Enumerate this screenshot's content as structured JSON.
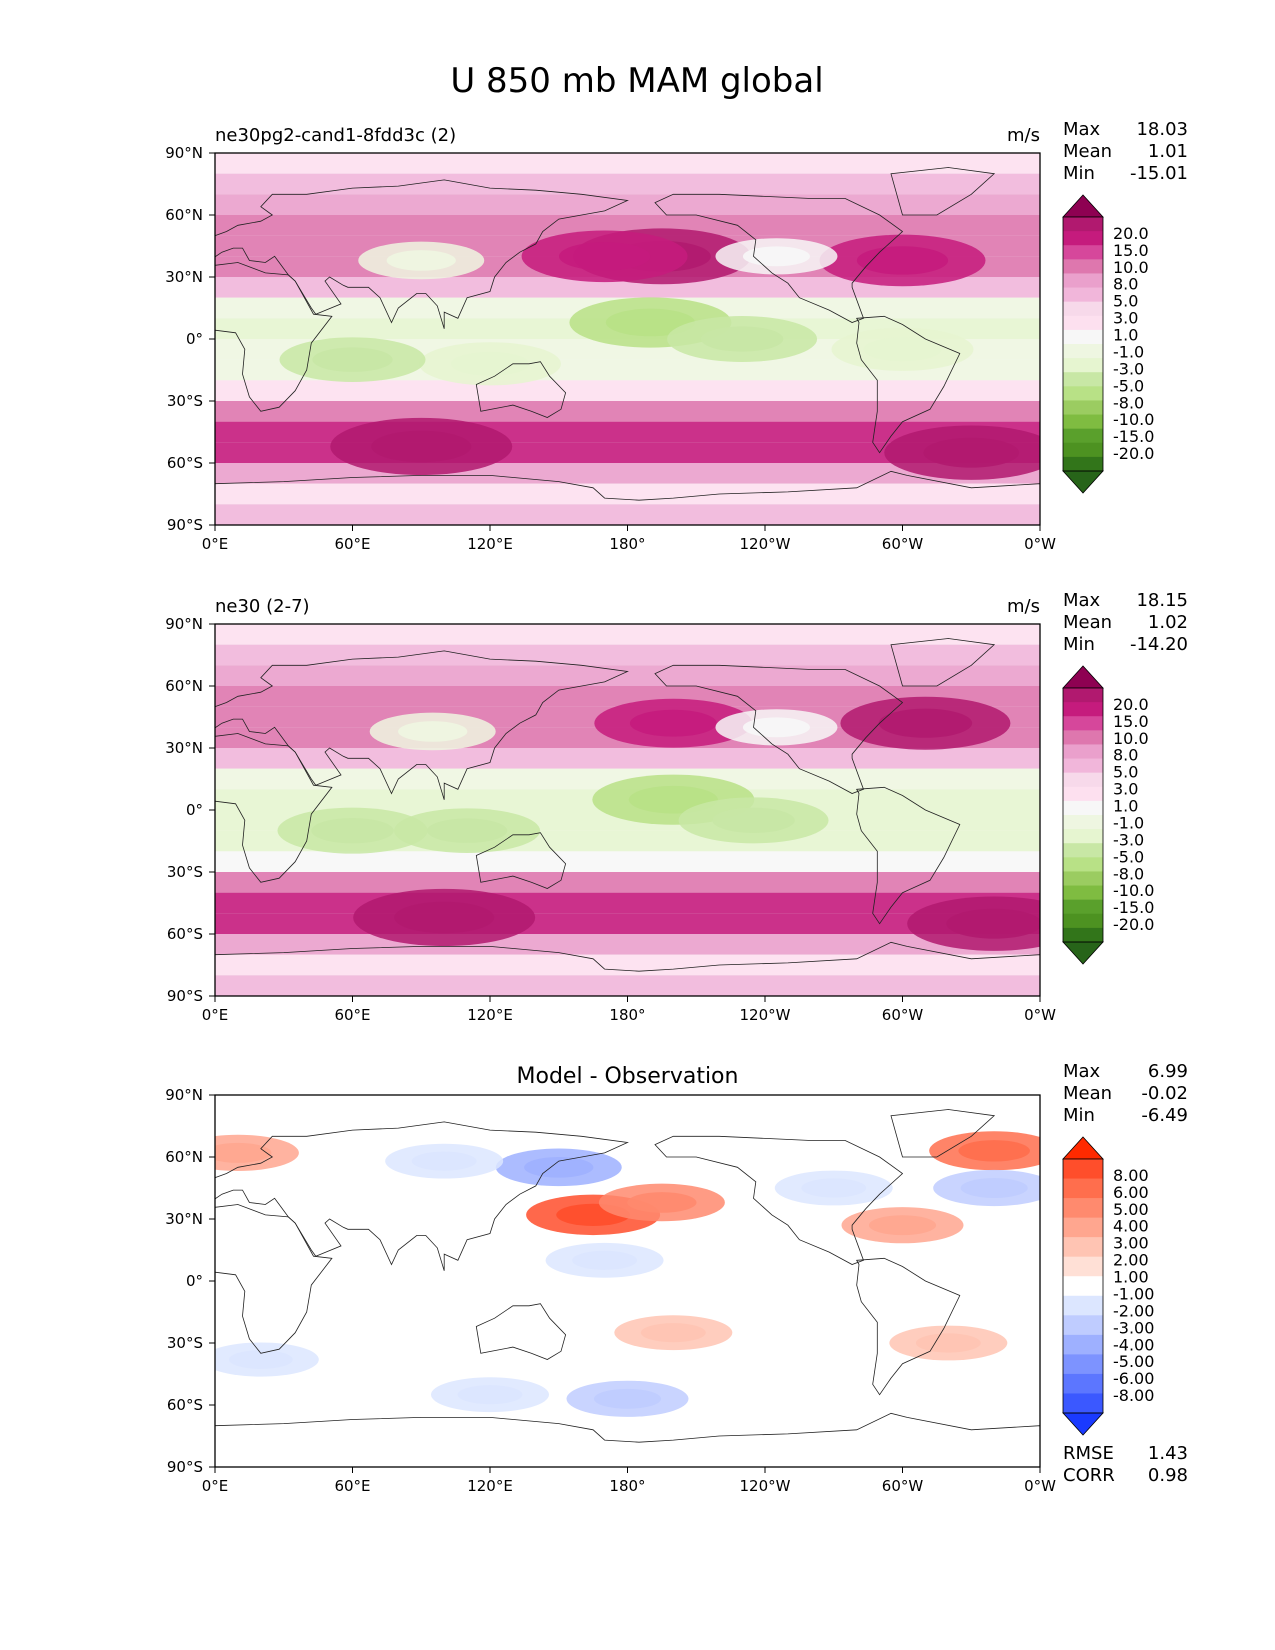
{
  "figure": {
    "title": "U 850 mb MAM global"
  },
  "chart_data": [
    {
      "type": "heatmap",
      "title": "ne30pg2-cand1-8fdd3c (2)",
      "units": "m/s",
      "stats": {
        "Max": "18.03",
        "Mean": "1.01",
        "Min": "-15.01"
      },
      "x_ticks": [
        "0°E",
        "60°E",
        "120°E",
        "180°",
        "120°W",
        "60°W",
        "0°W"
      ],
      "y_ticks": [
        "90°N",
        "60°N",
        "30°N",
        "0°",
        "30°S",
        "60°S",
        "90°S"
      ],
      "colorbar_levels": [
        "20.0",
        "15.0",
        "10.0",
        "8.0",
        "5.0",
        "3.0",
        "1.0",
        "-1.0",
        "-3.0",
        "-5.0",
        "-8.0",
        "-10.0",
        "-15.0",
        "-20.0"
      ],
      "colormap": [
        "#8e0152",
        "#b1196f",
        "#c51b7d",
        "#d6479b",
        "#de77ae",
        "#eaa0cc",
        "#f1b6da",
        "#f7d9ea",
        "#fde0ef",
        "#f7f7f7",
        "#eef6e1",
        "#e6f5d0",
        "#c8e7a5",
        "#b8e186",
        "#9bcc61",
        "#7fbc41",
        "#5aa02c",
        "#4d9221",
        "#32751a",
        "#276419"
      ],
      "zonal_profile": [
        {
          "lat": 90,
          "value": 0.2
        },
        {
          "lat": 80,
          "value": 1.5
        },
        {
          "lat": 70,
          "value": 3
        },
        {
          "lat": 60,
          "value": 5
        },
        {
          "lat": 50,
          "value": 6
        },
        {
          "lat": 40,
          "value": 9
        },
        {
          "lat": 30,
          "value": 6
        },
        {
          "lat": 20,
          "value": -1
        },
        {
          "lat": 10,
          "value": -7
        },
        {
          "lat": 0,
          "value": -4
        },
        {
          "lat": -10,
          "value": -6
        },
        {
          "lat": -20,
          "value": -3
        },
        {
          "lat": -30,
          "value": 2
        },
        {
          "lat": -40,
          "value": 10
        },
        {
          "lat": -50,
          "value": 16
        },
        {
          "lat": -60,
          "value": 11
        },
        {
          "lat": -70,
          "value": -2
        },
        {
          "lat": -80,
          "value": 2
        },
        {
          "lat": -90,
          "value": 0
        }
      ],
      "features": [
        {
          "lon": 195,
          "lat": 40,
          "value": 17
        },
        {
          "lon": 170,
          "lat": 40,
          "value": 14
        },
        {
          "lon": 300,
          "lat": 38,
          "value": 14
        },
        {
          "lon": 90,
          "lat": 38,
          "value": -4
        },
        {
          "lon": 245,
          "lat": 40,
          "value": -3
        },
        {
          "lon": 190,
          "lat": 8,
          "value": -13
        },
        {
          "lon": 230,
          "lat": 0,
          "value": -10
        },
        {
          "lon": 120,
          "lat": -12,
          "value": -8
        },
        {
          "lon": 300,
          "lat": -5,
          "value": -8
        },
        {
          "lon": 60,
          "lat": -10,
          "value": -9
        },
        {
          "lon": 90,
          "lat": -52,
          "value": 18
        },
        {
          "lon": 330,
          "lat": -55,
          "value": 16
        }
      ]
    },
    {
      "type": "heatmap",
      "title": "ne30 (2-7)",
      "units": "m/s",
      "stats": {
        "Max": "18.15",
        "Mean": "1.02",
        "Min": "-14.20"
      },
      "x_ticks": [
        "0°E",
        "60°E",
        "120°E",
        "180°",
        "120°W",
        "60°W",
        "0°W"
      ],
      "y_ticks": [
        "90°N",
        "60°N",
        "30°N",
        "0°",
        "30°S",
        "60°S",
        "90°S"
      ],
      "colorbar_levels": [
        "20.0",
        "15.0",
        "10.0",
        "8.0",
        "5.0",
        "3.0",
        "1.0",
        "-1.0",
        "-3.0",
        "-5.0",
        "-8.0",
        "-10.0",
        "-15.0",
        "-20.0"
      ],
      "colormap": [
        "#8e0152",
        "#b1196f",
        "#c51b7d",
        "#d6479b",
        "#de77ae",
        "#eaa0cc",
        "#f1b6da",
        "#f7d9ea",
        "#fde0ef",
        "#f7f7f7",
        "#eef6e1",
        "#e6f5d0",
        "#c8e7a5",
        "#b8e186",
        "#9bcc61",
        "#7fbc41",
        "#5aa02c",
        "#4d9221",
        "#32751a",
        "#276419"
      ],
      "zonal_profile": [
        {
          "lat": 90,
          "value": 0.2
        },
        {
          "lat": 80,
          "value": 1.5
        },
        {
          "lat": 70,
          "value": 3
        },
        {
          "lat": 60,
          "value": 5
        },
        {
          "lat": 50,
          "value": 7
        },
        {
          "lat": 40,
          "value": 7
        },
        {
          "lat": 30,
          "value": 4
        },
        {
          "lat": 20,
          "value": -2
        },
        {
          "lat": 10,
          "value": -8
        },
        {
          "lat": 0,
          "value": -5
        },
        {
          "lat": -10,
          "value": -7
        },
        {
          "lat": -20,
          "value": -4
        },
        {
          "lat": -30,
          "value": 1
        },
        {
          "lat": -40,
          "value": 9
        },
        {
          "lat": -50,
          "value": 16
        },
        {
          "lat": -60,
          "value": 11
        },
        {
          "lat": -70,
          "value": -2
        },
        {
          "lat": -80,
          "value": 2
        },
        {
          "lat": -90,
          "value": 0
        }
      ],
      "features": [
        {
          "lon": 200,
          "lat": 42,
          "value": 12
        },
        {
          "lon": 310,
          "lat": 42,
          "value": 15
        },
        {
          "lon": 95,
          "lat": 38,
          "value": -4
        },
        {
          "lon": 245,
          "lat": 40,
          "value": -3
        },
        {
          "lon": 200,
          "lat": 5,
          "value": -13
        },
        {
          "lon": 235,
          "lat": -5,
          "value": -10
        },
        {
          "lon": 110,
          "lat": -10,
          "value": -9
        },
        {
          "lon": 60,
          "lat": -10,
          "value": -10
        },
        {
          "lon": 100,
          "lat": -52,
          "value": 18
        },
        {
          "lon": 340,
          "lat": -55,
          "value": 16
        }
      ]
    },
    {
      "type": "heatmap",
      "title": "Model - Observation",
      "units": "",
      "stats": {
        "Max": "6.99",
        "Mean": "-0.02",
        "Min": "-6.49"
      },
      "extra_stats": {
        "RMSE": "1.43",
        "CORR": "0.98"
      },
      "x_ticks": [
        "0°E",
        "60°E",
        "120°E",
        "180°",
        "120°W",
        "60°W",
        "0°W"
      ],
      "y_ticks": [
        "90°N",
        "60°N",
        "30°N",
        "0°",
        "30°S",
        "60°S",
        "90°S"
      ],
      "colorbar_levels": [
        "8.00",
        "6.00",
        "5.00",
        "4.00",
        "3.00",
        "2.00",
        "1.00",
        "-1.00",
        "-2.00",
        "-3.00",
        "-4.00",
        "-5.00",
        "-6.00",
        "-8.00"
      ],
      "colormap": [
        "#ff2a00",
        "#ff4e2b",
        "#ff6e4d",
        "#ff8a6e",
        "#ffa68f",
        "#ffc4b3",
        "#ffe0d6",
        "#ffffff",
        "#dce6ff",
        "#bfccff",
        "#9eb0ff",
        "#7d93ff",
        "#5c76ff",
        "#3b58ff",
        "#1a3aff"
      ],
      "zonal_profile": [
        {
          "lat": 90,
          "value": 0
        },
        {
          "lat": -90,
          "value": 0
        }
      ],
      "features": [
        {
          "lon": 165,
          "lat": 32,
          "value": 6
        },
        {
          "lon": 195,
          "lat": 38,
          "value": 4
        },
        {
          "lon": 300,
          "lat": 27,
          "value": 3
        },
        {
          "lon": 340,
          "lat": 63,
          "value": 5
        },
        {
          "lon": 10,
          "lat": 62,
          "value": 3
        },
        {
          "lon": 150,
          "lat": 55,
          "value": -4
        },
        {
          "lon": 100,
          "lat": 58,
          "value": -2
        },
        {
          "lon": 340,
          "lat": 45,
          "value": -3
        },
        {
          "lon": 270,
          "lat": 45,
          "value": -2
        },
        {
          "lon": 170,
          "lat": 10,
          "value": -2
        },
        {
          "lon": 200,
          "lat": -25,
          "value": 2
        },
        {
          "lon": 180,
          "lat": -57,
          "value": -3
        },
        {
          "lon": 120,
          "lat": -55,
          "value": -2
        },
        {
          "lon": 20,
          "lat": -38,
          "value": -1.5
        },
        {
          "lon": 320,
          "lat": -30,
          "value": 2
        }
      ]
    }
  ]
}
